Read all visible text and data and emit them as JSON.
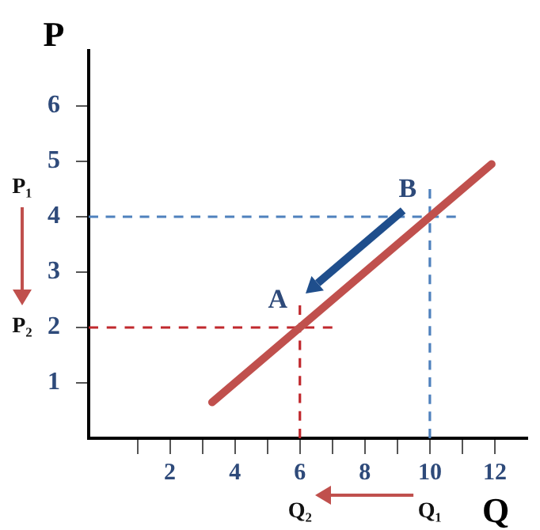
{
  "chart_data": {
    "type": "line",
    "xlabel": "Q",
    "ylabel": "P",
    "xlim": [
      -0.5,
      13
    ],
    "ylim": [
      0,
      7
    ],
    "xticks": [
      {
        "value": 1,
        "label": null
      },
      2,
      {
        "value": 3,
        "label": null
      },
      4,
      {
        "value": 5,
        "label": null
      },
      6,
      {
        "value": 7,
        "label": null
      },
      8,
      {
        "value": 9,
        "label": null
      },
      10,
      {
        "value": 11,
        "label": null
      },
      12
    ],
    "yticks": [
      1,
      2,
      3,
      4,
      5,
      6
    ],
    "marker": "none",
    "series": [
      {
        "color": "#c0504d",
        "x": [
          3.3,
          11.9
        ],
        "values": [
          0.65,
          4.95
        ]
      },
      {
        "color": "#4f81bd",
        "line_style": "dashed",
        "x": [
          -0.5,
          10.8
        ],
        "values": [
          4,
          4
        ]
      },
      {
        "color": "#4f81bd",
        "line_style": "dashed",
        "x": [
          10,
          10
        ],
        "values": [
          0,
          4.5
        ]
      },
      {
        "color": "#c0282d",
        "line_style": "dashed",
        "x": [
          -0.5,
          7
        ],
        "values": [
          2,
          2
        ]
      },
      {
        "color": "#c0282d",
        "line_style": "dashed",
        "x": [
          6,
          6
        ],
        "values": [
          0,
          2.4
        ]
      }
    ],
    "annotations": [
      {
        "text": "B",
        "x": 10,
        "y": 4
      },
      {
        "text": "A",
        "x": 6,
        "y": 2
      },
      "P₁",
      "P₂",
      "Q₁",
      "Q₂"
    ]
  }
}
